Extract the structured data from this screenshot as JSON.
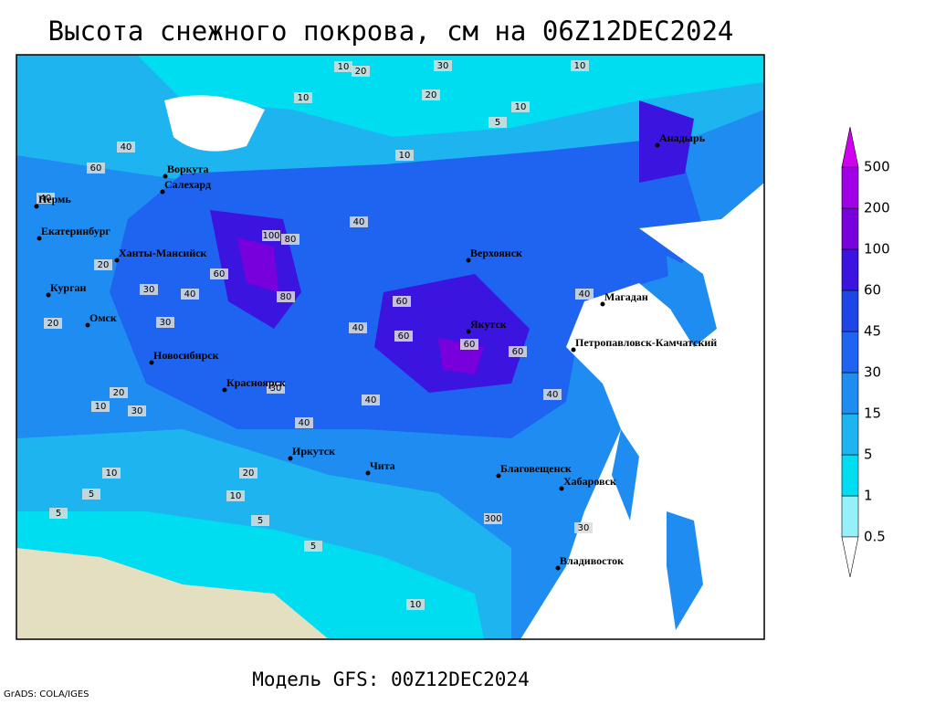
{
  "title": "Высота снежного покрова, см на 06Z12DEC2024",
  "model": "Модель GFS: 00Z12DEC2024",
  "credit": "GrADS: COLA/IGES",
  "legend": {
    "levels": [
      0.5,
      1,
      5,
      15,
      30,
      45,
      60,
      100,
      200,
      500
    ],
    "colors": [
      "#ffffff",
      "#96f0fa",
      "#00dcf0",
      "#1eb4f0",
      "#1e8cf0",
      "#1e64f0",
      "#1e46e6",
      "#3c14e0",
      "#7800dc",
      "#a000e6",
      "#d200f0"
    ]
  },
  "cities": [
    "Анадырь",
    "Воркута",
    "Салехард",
    "Пермь",
    "Екатеринбург",
    "Ханты-Мансийск",
    "Верхоянск",
    "Магадан",
    "Курган",
    "Омск",
    "Якутск",
    "Петропавловск-Камчатский",
    "Новосибирск",
    "Красноярск",
    "Иркутск",
    "Чита",
    "Благовещенск",
    "Хабаровск",
    "Владивосток"
  ],
  "contour_labels": [
    10,
    20,
    30,
    10,
    10,
    20,
    10,
    10,
    5,
    40,
    60,
    40,
    30,
    40,
    100,
    80,
    60,
    40,
    60,
    60,
    60,
    80,
    40,
    40,
    30,
    20,
    20,
    30,
    20,
    10,
    10,
    5,
    10,
    5,
    5,
    5,
    10,
    300,
    30,
    20,
    40,
    30,
    60,
    40,
    40
  ]
}
